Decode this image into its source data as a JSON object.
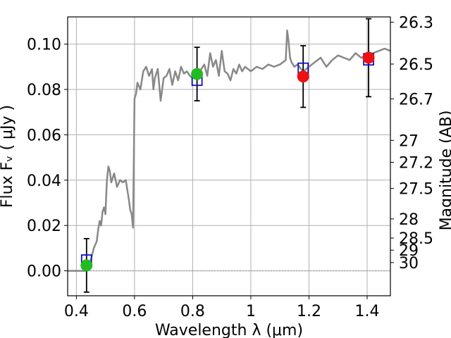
{
  "chart_data": {
    "type": "scatter",
    "xlabel": "Wavelength  λ (μm)",
    "ylabel": "Flux  Fᵥ  ( μJy )",
    "y2label": "Magnitude (AB)",
    "xlim": [
      0.37,
      1.48
    ],
    "ylim": [
      -0.011,
      0.112
    ],
    "grid": true,
    "x_ticks": [
      0.4,
      0.6,
      0.8,
      1.0,
      1.2,
      1.4
    ],
    "x_tick_labels": [
      "0.4",
      "0.6",
      "0.8",
      "1",
      "1.2",
      "1.4"
    ],
    "y_ticks": [
      0.0,
      0.02,
      0.04,
      0.06,
      0.08,
      0.1
    ],
    "y_tick_labels": [
      "0.00",
      "0.02",
      "0.04",
      "0.06",
      "0.08",
      "0.10"
    ],
    "mag_ticks": [
      26.3,
      26.5,
      26.7,
      27,
      27.2,
      27.5,
      28,
      28.5,
      29,
      30
    ],
    "mag_tick_labels": [
      "26.3",
      "26.5",
      "26.7",
      "27",
      "27.2",
      "27.5",
      "28",
      "28.5",
      "29",
      "30"
    ],
    "colors": {
      "spectrum": "#888888",
      "model_box": "#1010cc",
      "observed_green": "#22bb22",
      "observed_red": "#ee1111",
      "errorbar": "#000000",
      "grid": "#b0b0b0",
      "zero_line": "#999999"
    },
    "spectrum": {
      "x": [
        0.37,
        0.4,
        0.42,
        0.435,
        0.44,
        0.45,
        0.46,
        0.47,
        0.475,
        0.48,
        0.485,
        0.49,
        0.495,
        0.5,
        0.505,
        0.51,
        0.515,
        0.52,
        0.53,
        0.54,
        0.55,
        0.56,
        0.57,
        0.58,
        0.585,
        0.59,
        0.595,
        0.6,
        0.605,
        0.61,
        0.62,
        0.63,
        0.64,
        0.65,
        0.66,
        0.665,
        0.67,
        0.68,
        0.69,
        0.7,
        0.71,
        0.72,
        0.73,
        0.74,
        0.75,
        0.76,
        0.77,
        0.78,
        0.79,
        0.8,
        0.81,
        0.82,
        0.83,
        0.84,
        0.85,
        0.86,
        0.87,
        0.88,
        0.89,
        0.9,
        0.91,
        0.92,
        0.93,
        0.94,
        0.95,
        0.96,
        0.97,
        0.98,
        0.99,
        1.0,
        1.02,
        1.04,
        1.06,
        1.08,
        1.1,
        1.12,
        1.125,
        1.13,
        1.135,
        1.14,
        1.15,
        1.16,
        1.18,
        1.2,
        1.22,
        1.24,
        1.26,
        1.28,
        1.3,
        1.32,
        1.34,
        1.36,
        1.38,
        1.4,
        1.42,
        1.44,
        1.46,
        1.48
      ],
      "y": [
        0.0,
        0.0,
        0.0,
        0.0,
        0.003,
        0.005,
        0.01,
        0.013,
        0.018,
        0.022,
        0.02,
        0.026,
        0.028,
        0.025,
        0.04,
        0.046,
        0.044,
        0.039,
        0.043,
        0.037,
        0.04,
        0.039,
        0.04,
        0.032,
        0.027,
        0.025,
        0.019,
        0.076,
        0.078,
        0.083,
        0.08,
        0.088,
        0.09,
        0.086,
        0.089,
        0.08,
        0.085,
        0.089,
        0.075,
        0.085,
        0.086,
        0.089,
        0.082,
        0.088,
        0.084,
        0.09,
        0.087,
        0.088,
        0.086,
        0.085,
        0.087,
        0.088,
        0.089,
        0.091,
        0.086,
        0.096,
        0.09,
        0.093,
        0.086,
        0.097,
        0.088,
        0.087,
        0.084,
        0.089,
        0.087,
        0.091,
        0.088,
        0.09,
        0.089,
        0.088,
        0.09,
        0.089,
        0.091,
        0.09,
        0.091,
        0.093,
        0.106,
        0.101,
        0.094,
        0.092,
        0.09,
        0.091,
        0.088,
        0.09,
        0.092,
        0.094,
        0.09,
        0.093,
        0.095,
        0.094,
        0.093,
        0.096,
        0.094,
        0.095,
        0.096,
        0.097,
        0.098,
        0.097
      ]
    },
    "model_points": {
      "x": [
        0.435,
        0.815,
        1.18,
        1.405
      ],
      "y": [
        0.0045,
        0.0843,
        0.0891,
        0.0933
      ]
    },
    "observed_points": [
      {
        "x": 0.435,
        "y": 0.0024,
        "yerr": 0.0118,
        "color": "green"
      },
      {
        "x": 0.815,
        "y": 0.0868,
        "yerr": 0.0118,
        "color": "green"
      },
      {
        "x": 1.18,
        "y": 0.0857,
        "yerr": 0.0136,
        "color": "red"
      },
      {
        "x": 1.405,
        "y": 0.094,
        "yerr": 0.0172,
        "color": "red"
      }
    ]
  }
}
